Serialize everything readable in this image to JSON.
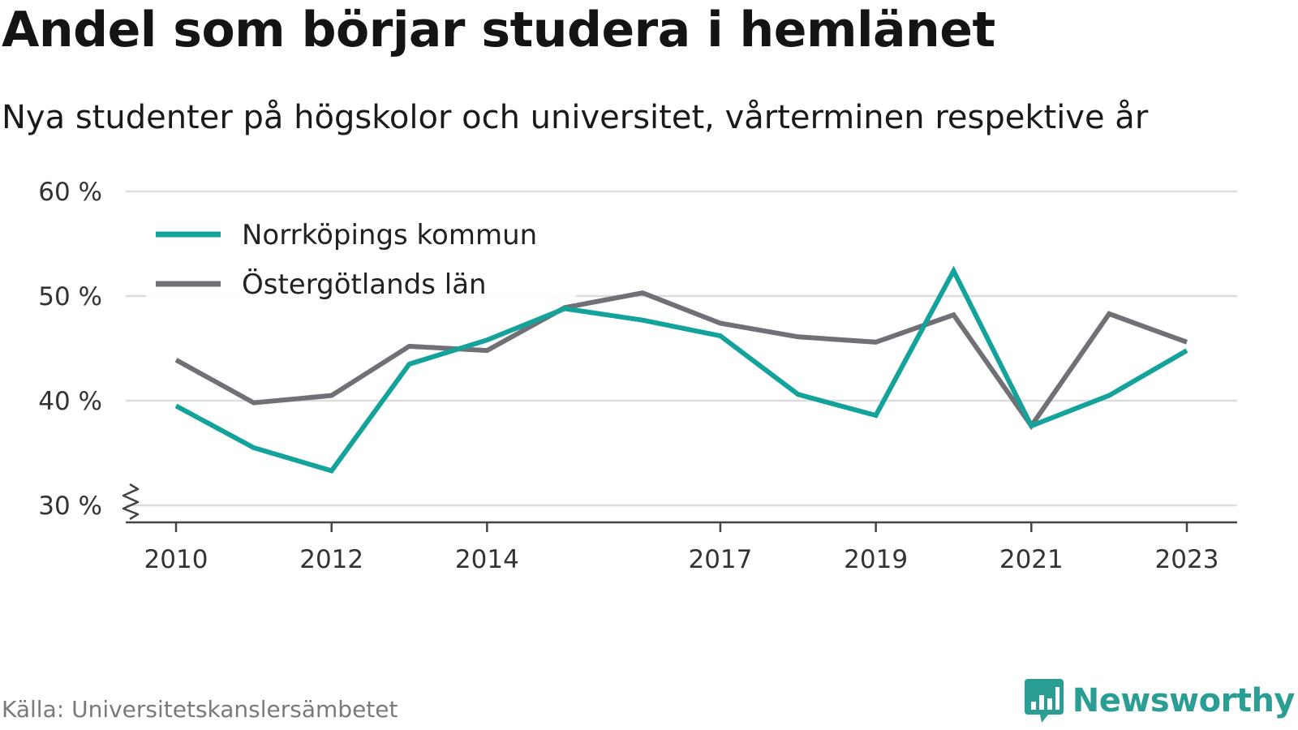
{
  "header": {
    "title": "Andel som börjar studera i hemlänet",
    "subtitle": "Nya studenter på högskolor och universitet, vårterminen respektive år"
  },
  "footer": {
    "source": "Källa: Universitetskanslersämbetet",
    "brand": "Newsworthy",
    "brand_icon": "bar-chart-speech-bubble-icon"
  },
  "colors": {
    "norrkoping": "#14a39b",
    "ostergotland": "#717077",
    "grid": "#dddddd",
    "axis": "#444444"
  },
  "chart_data": {
    "type": "line",
    "title": "Andel som börjar studera i hemlänet",
    "subtitle": "Nya studenter på högskolor och universitet, vårterminen respektive år",
    "x": [
      2010,
      2011,
      2012,
      2013,
      2014,
      2015,
      2016,
      2017,
      2018,
      2019,
      2020,
      2021,
      2022,
      2023
    ],
    "x_tick_labels": [
      "2010",
      "2012",
      "2014",
      "2017",
      "2019",
      "2021",
      "2023"
    ],
    "x_tick_values": [
      2010,
      2012,
      2014,
      2017,
      2019,
      2021,
      2023
    ],
    "ylim": [
      30,
      60
    ],
    "y_ticks": [
      30,
      40,
      50,
      60
    ],
    "y_tick_labels": [
      "30 %",
      "40 %",
      "50 %",
      "60 %"
    ],
    "y_axis_break": true,
    "grid": true,
    "legend_position": "top-left",
    "series": [
      {
        "name": "Norrköpings kommun",
        "color": "#14a39b",
        "values": [
          39.5,
          35.5,
          33.3,
          43.5,
          45.8,
          48.8,
          47.7,
          46.2,
          40.6,
          38.6,
          52.4,
          37.6,
          40.5,
          44.8
        ]
      },
      {
        "name": "Östergötlands län",
        "color": "#717077",
        "values": [
          43.9,
          39.8,
          40.5,
          45.2,
          44.8,
          48.9,
          50.3,
          47.4,
          46.1,
          45.6,
          48.2,
          37.6,
          48.3,
          45.6
        ]
      }
    ]
  }
}
